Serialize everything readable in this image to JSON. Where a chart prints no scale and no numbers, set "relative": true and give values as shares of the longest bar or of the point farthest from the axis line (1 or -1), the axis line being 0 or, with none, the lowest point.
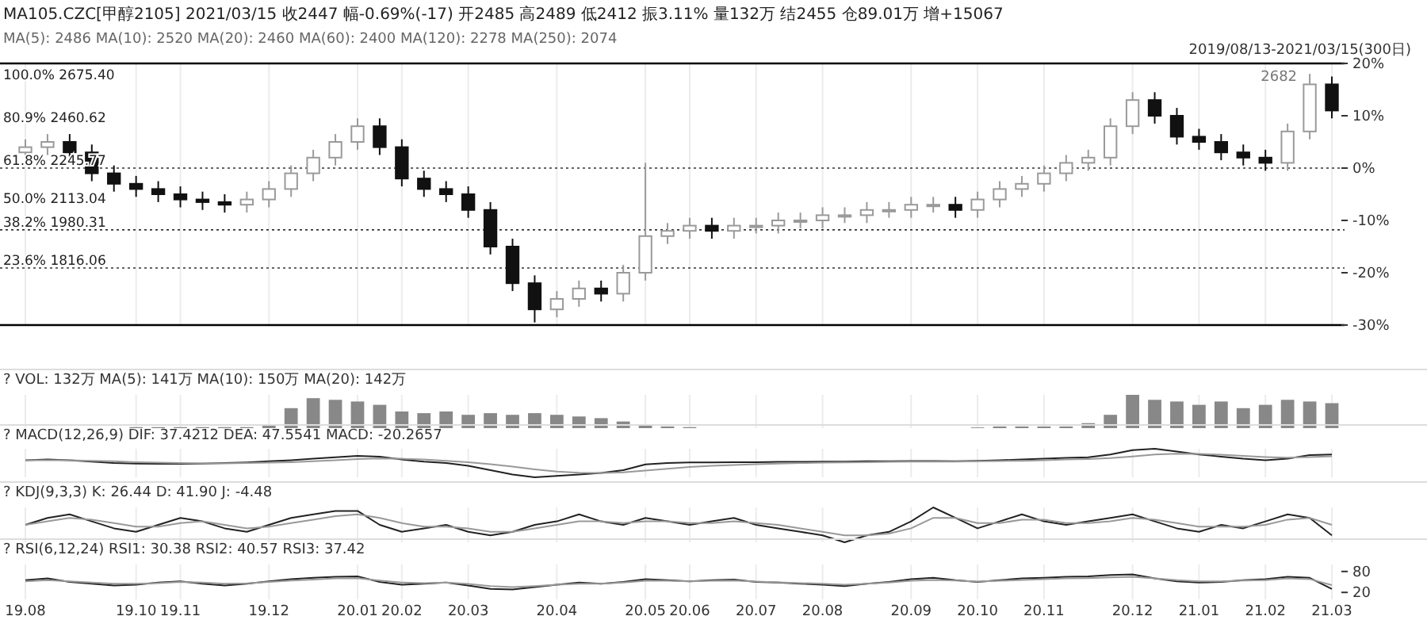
{
  "chart_data": [
    {
      "type": "candlestick",
      "title": "MA105.CZC[甲醇2105]  2021/03/15  收2447  幅-0.69%(-17)  开2485  高2489  低2412  振3.11%  量132万  结2455  仓89.01万  增+15067",
      "subtitle": "MA(5): 2486  MA(10): 2520  MA(20): 2460  MA(60): 2400  MA(120): 2278  MA(250): 2074",
      "annotations": [
        "2019/08/13-2021/03/15(300日)",
        "2682",
        "100.0%  2675.40",
        "80.9%  2460.62",
        "61.8%  2245.77",
        "50.0%  2113.04",
        "38.2%  1980.31",
        "23.6%  1816.06"
      ],
      "categories": [
        "19.08",
        null,
        null,
        null,
        null,
        "19.10",
        null,
        "19.11",
        null,
        null,
        null,
        "19.12",
        null,
        null,
        null,
        "20.01",
        null,
        "20.02",
        null,
        null,
        "20.03",
        null,
        null,
        null,
        "20.04",
        null,
        null,
        null,
        "20.05",
        null,
        "20.06",
        null,
        null,
        "20.07",
        null,
        null,
        "20.08",
        null,
        null,
        null,
        "20.09",
        null,
        null,
        "20.10",
        null,
        null,
        "20.11",
        null,
        null,
        null,
        "20.12",
        null,
        null,
        "21.01",
        null,
        null,
        "21.02",
        null,
        null,
        "21.03"
      ],
      "ohlc": [
        [
          3,
          5.5,
          1.5,
          4
        ],
        [
          4,
          6.5,
          2.5,
          5
        ],
        [
          5,
          6.5,
          1.5,
          3
        ],
        [
          3,
          4.5,
          -2.5,
          -1
        ],
        [
          -1,
          0.5,
          -4.5,
          -3
        ],
        [
          -3,
          -1.5,
          -5.5,
          -4
        ],
        [
          -4,
          -2.5,
          -6.5,
          -5
        ],
        [
          -5,
          -3.5,
          -7.5,
          -6
        ],
        [
          -6,
          -4.5,
          -8,
          -6.5
        ],
        [
          -6.5,
          -5,
          -8.5,
          -7
        ],
        [
          -7,
          -4.5,
          -8.5,
          -6
        ],
        [
          -6,
          -2.5,
          -7.5,
          -4
        ],
        [
          -4,
          0.5,
          -5.5,
          -1
        ],
        [
          -1,
          3.5,
          -2.5,
          2
        ],
        [
          2,
          6.5,
          0.5,
          5
        ],
        [
          5,
          9.5,
          3.5,
          8
        ],
        [
          8,
          9.5,
          2.5,
          4
        ],
        [
          4,
          5.5,
          -3.5,
          -2
        ],
        [
          -2,
          -0.5,
          -5.5,
          -4
        ],
        [
          -4,
          -2.5,
          -6.5,
          -5
        ],
        [
          -5,
          -3.5,
          -9.5,
          -8
        ],
        [
          -8,
          -6.5,
          -16.5,
          -15
        ],
        [
          -15,
          -13.5,
          -23.5,
          -22
        ],
        [
          -22,
          -20.5,
          -29.5,
          -27
        ],
        [
          -27,
          -23.5,
          -28.5,
          -25
        ],
        [
          -25,
          -21.5,
          -26.5,
          -23
        ],
        [
          -23,
          -21.5,
          -25.5,
          -24
        ],
        [
          -24,
          -18.5,
          -25.5,
          -20
        ],
        [
          -20,
          1,
          -21.5,
          -13
        ],
        [
          -13,
          -10.5,
          -14.5,
          -12
        ],
        [
          -12,
          -9.5,
          -13.5,
          -11
        ],
        [
          -11,
          -9.5,
          -13.5,
          -12
        ],
        [
          -12,
          -9.5,
          -13.5,
          -11
        ],
        [
          -11,
          -9.5,
          -12.5,
          -11
        ],
        [
          -11,
          -8.5,
          -12.5,
          -10
        ],
        [
          -10,
          -8.5,
          -11.5,
          -10
        ],
        [
          -10,
          -7.5,
          -11.5,
          -9
        ],
        [
          -9,
          -7.5,
          -10.5,
          -9
        ],
        [
          -9,
          -6.5,
          -10.5,
          -8
        ],
        [
          -8,
          -6.5,
          -9.5,
          -8
        ],
        [
          -8,
          -5.5,
          -9.5,
          -7
        ],
        [
          -7,
          -5.5,
          -8.5,
          -7
        ],
        [
          -7,
          -5.5,
          -9.5,
          -8
        ],
        [
          -8,
          -4.5,
          -9.5,
          -6
        ],
        [
          -6,
          -2.5,
          -7.5,
          -4
        ],
        [
          -4,
          -1.5,
          -5.5,
          -3
        ],
        [
          -3,
          0.5,
          -4.5,
          -1
        ],
        [
          -1,
          2.5,
          -2.5,
          1
        ],
        [
          1,
          3.5,
          -0.5,
          2
        ],
        [
          2,
          9.5,
          0.5,
          8
        ],
        [
          8,
          14.5,
          6.5,
          13
        ],
        [
          13,
          14.5,
          8.5,
          10
        ],
        [
          10,
          11.5,
          4.5,
          6
        ],
        [
          6,
          7.5,
          3.5,
          5
        ],
        [
          5,
          6.5,
          1.5,
          3
        ],
        [
          3,
          4.5,
          0.5,
          2
        ],
        [
          2,
          3.5,
          -0.5,
          1
        ],
        [
          1,
          8.5,
          -0.5,
          7
        ],
        [
          7,
          18,
          5.5,
          16
        ],
        [
          16,
          17.5,
          9.5,
          11
        ]
      ],
      "ylim": [
        -30,
        20
      ],
      "yticks": [
        {
          "value": 20,
          "label": "20%"
        },
        {
          "value": 10,
          "label": "10%"
        },
        {
          "value": 0,
          "label": "0%"
        },
        {
          "value": -10,
          "label": "-10%"
        },
        {
          "value": -20,
          "label": "-20%"
        },
        {
          "value": -30,
          "label": "-30%"
        }
      ],
      "ref_lines": [
        {
          "axis": "y",
          "value": 0,
          "line_style": "dotted"
        },
        {
          "axis": "y",
          "value": -11.8,
          "line_style": "dotted"
        },
        {
          "axis": "y",
          "value": -19.1,
          "line_style": "dotted"
        }
      ],
      "grid": "x",
      "tick_labels": "y"
    },
    {
      "type": "bar",
      "title": "? VOL: 132万 MA(5): 141万 MA(10): 150万 MA(20): 142万",
      "relative": true,
      "grid": "x",
      "tick_labels": false,
      "categories": [
        "19.08",
        null,
        null,
        null,
        null,
        "19.10",
        null,
        "19.11",
        null,
        null,
        null,
        "19.12",
        null,
        null,
        null,
        "20.01",
        null,
        "20.02",
        null,
        null,
        "20.03",
        null,
        null,
        null,
        "20.04",
        null,
        null,
        null,
        "20.05",
        null,
        "20.06",
        null,
        null,
        "20.07",
        null,
        null,
        "20.08",
        null,
        null,
        null,
        "20.09",
        null,
        null,
        "20.10",
        null,
        null,
        "20.11",
        null,
        null,
        null,
        "20.12",
        null,
        null,
        "21.01",
        null,
        null,
        "21.02",
        null,
        null,
        "21.03"
      ],
      "series": [
        {
          "color": "#888888",
          "values": [
            null,
            null,
            null,
            null,
            null,
            0.03,
            0.03,
            0.03,
            0.03,
            0.03,
            0.03,
            0.1,
            0.6,
            0.9,
            0.85,
            0.8,
            0.7,
            0.5,
            0.45,
            0.5,
            0.4,
            0.45,
            0.4,
            0.45,
            0.4,
            0.35,
            0.3,
            0.2,
            0.1,
            0.05,
            0.03,
            null,
            null,
            null,
            null,
            null,
            null,
            null,
            null,
            null,
            null,
            null,
            null,
            0.02,
            0.05,
            0.05,
            0.05,
            0.05,
            0.15,
            0.4,
            1,
            0.85,
            0.8,
            0.7,
            0.8,
            0.6,
            0.7,
            0.85,
            0.8,
            0.75
          ]
        }
      ]
    },
    {
      "type": "line",
      "title": "? MACD(12,26,9) DIF: 37.4212 DEA: 47.5541 MACD: -20.2657",
      "relative": true,
      "grid": "x",
      "tick_labels": false,
      "categories": [
        "19.08",
        null,
        null,
        null,
        null,
        "19.10",
        null,
        "19.11",
        null,
        null,
        null,
        "19.12",
        null,
        null,
        null,
        "20.01",
        null,
        "20.02",
        null,
        null,
        "20.03",
        null,
        null,
        null,
        "20.04",
        null,
        null,
        null,
        "20.05",
        null,
        "20.06",
        null,
        null,
        "20.07",
        null,
        null,
        "20.08",
        null,
        null,
        null,
        "20.09",
        null,
        null,
        "20.10",
        null,
        null,
        "20.11",
        null,
        null,
        null,
        "20.12",
        null,
        null,
        "21.01",
        null,
        null,
        "21.02",
        null,
        null,
        "21.03"
      ],
      "series": [
        {
          "color": "#222222",
          "values": [
            0.6,
            0.62,
            0.6,
            0.55,
            0.5,
            0.48,
            0.47,
            0.47,
            0.48,
            0.5,
            0.52,
            0.56,
            0.6,
            0.65,
            0.7,
            0.75,
            0.72,
            0.62,
            0.55,
            0.5,
            0.4,
            0.25,
            0.1,
            0,
            0.05,
            0.1,
            0.15,
            0.25,
            0.45,
            0.5,
            0.52,
            0.52,
            0.53,
            0.53,
            0.54,
            0.54,
            0.55,
            0.55,
            0.56,
            0.56,
            0.57,
            0.57,
            0.56,
            0.58,
            0.6,
            0.62,
            0.65,
            0.68,
            0.7,
            0.8,
            0.95,
            1,
            0.9,
            0.8,
            0.72,
            0.65,
            0.6,
            0.65,
            0.78,
            0.8
          ]
        },
        {
          "color": "#999999",
          "values": [
            0.6,
            0.6,
            0.6,
            0.58,
            0.56,
            0.53,
            0.51,
            0.5,
            0.49,
            0.49,
            0.5,
            0.51,
            0.53,
            0.56,
            0.6,
            0.64,
            0.66,
            0.65,
            0.62,
            0.58,
            0.53,
            0.46,
            0.37,
            0.28,
            0.2,
            0.16,
            0.15,
            0.17,
            0.24,
            0.3,
            0.36,
            0.4,
            0.43,
            0.46,
            0.48,
            0.5,
            0.51,
            0.52,
            0.53,
            0.54,
            0.55,
            0.55,
            0.55,
            0.56,
            0.57,
            0.58,
            0.6,
            0.62,
            0.64,
            0.67,
            0.73,
            0.8,
            0.83,
            0.82,
            0.79,
            0.75,
            0.71,
            0.69,
            0.71,
            0.74
          ]
        }
      ]
    },
    {
      "type": "line",
      "title": "? KDJ(9,3,3) K: 26.44 D: 41.90 J: -4.48",
      "relative": true,
      "grid": "x",
      "tick_labels": false,
      "categories": [
        "19.08",
        null,
        null,
        null,
        null,
        "19.10",
        null,
        "19.11",
        null,
        null,
        null,
        "19.12",
        null,
        null,
        null,
        "20.01",
        null,
        "20.02",
        null,
        null,
        "20.03",
        null,
        null,
        null,
        "20.04",
        null,
        null,
        null,
        "20.05",
        null,
        "20.06",
        null,
        null,
        "20.07",
        null,
        null,
        "20.08",
        null,
        null,
        null,
        "20.09",
        null,
        null,
        "20.10",
        null,
        null,
        "20.11",
        null,
        null,
        null,
        "20.12",
        null,
        null,
        "21.01",
        null,
        null,
        "21.02",
        null,
        null,
        "21.03"
      ],
      "series": [
        {
          "color": "#222222",
          "values": [
            0.5,
            0.7,
            0.8,
            0.6,
            0.4,
            0.3,
            0.5,
            0.7,
            0.6,
            0.4,
            0.3,
            0.5,
            0.7,
            0.8,
            0.9,
            0.9,
            0.5,
            0.3,
            0.4,
            0.5,
            0.3,
            0.2,
            0.3,
            0.5,
            0.6,
            0.8,
            0.6,
            0.5,
            0.7,
            0.6,
            0.5,
            0.6,
            0.7,
            0.5,
            0.4,
            0.3,
            0.2,
            0,
            0.2,
            0.3,
            0.6,
            1,
            0.7,
            0.4,
            0.6,
            0.8,
            0.6,
            0.5,
            0.6,
            0.7,
            0.8,
            0.6,
            0.4,
            0.3,
            0.5,
            0.4,
            0.6,
            0.8,
            0.7,
            0.2
          ]
        },
        {
          "color": "#999999",
          "values": [
            0.5,
            0.6,
            0.7,
            0.65,
            0.55,
            0.45,
            0.45,
            0.55,
            0.6,
            0.5,
            0.4,
            0.45,
            0.55,
            0.65,
            0.75,
            0.8,
            0.7,
            0.55,
            0.45,
            0.45,
            0.4,
            0.3,
            0.3,
            0.4,
            0.5,
            0.6,
            0.6,
            0.55,
            0.6,
            0.6,
            0.55,
            0.55,
            0.6,
            0.55,
            0.5,
            0.4,
            0.3,
            0.2,
            0.2,
            0.25,
            0.4,
            0.7,
            0.7,
            0.55,
            0.55,
            0.65,
            0.65,
            0.55,
            0.55,
            0.6,
            0.7,
            0.65,
            0.55,
            0.45,
            0.45,
            0.45,
            0.5,
            0.65,
            0.7,
            0.5
          ]
        }
      ]
    },
    {
      "type": "line",
      "title": "? RSI(6,12,24) RSI1: 30.38 RSI2: 40.57 RSI3: 37.42",
      "grid": "x",
      "ylim": [
        0,
        100
      ],
      "yticks": [
        80,
        20
      ],
      "categories": [
        "19.08",
        null,
        null,
        null,
        null,
        "19.10",
        null,
        "19.11",
        null,
        null,
        null,
        "19.12",
        null,
        null,
        null,
        "20.01",
        null,
        "20.02",
        null,
        null,
        "20.03",
        null,
        null,
        null,
        "20.04",
        null,
        null,
        null,
        "20.05",
        null,
        "20.06",
        null,
        null,
        "20.07",
        null,
        null,
        "20.08",
        null,
        null,
        null,
        "20.09",
        null,
        null,
        "20.10",
        null,
        null,
        "20.11",
        null,
        null,
        null,
        "20.12",
        null,
        null,
        "21.01",
        null,
        null,
        "21.02",
        null,
        null,
        "21.03"
      ],
      "series": [
        {
          "color": "#222222",
          "values": [
            55,
            60,
            50,
            45,
            40,
            42,
            48,
            52,
            45,
            40,
            45,
            52,
            58,
            62,
            65,
            66,
            50,
            42,
            45,
            48,
            40,
            30,
            28,
            35,
            42,
            48,
            45,
            50,
            58,
            55,
            52,
            55,
            57,
            50,
            48,
            45,
            42,
            38,
            45,
            50,
            58,
            62,
            55,
            50,
            55,
            60,
            62,
            65,
            66,
            70,
            72,
            60,
            52,
            48,
            50,
            55,
            58,
            65,
            62,
            30
          ]
        },
        {
          "color": "#999999",
          "values": [
            52,
            55,
            52,
            48,
            45,
            45,
            47,
            50,
            48,
            45,
            46,
            50,
            54,
            57,
            60,
            61,
            54,
            48,
            47,
            48,
            44,
            38,
            35,
            38,
            42,
            45,
            45,
            48,
            53,
            53,
            52,
            53,
            54,
            51,
            49,
            47,
            45,
            42,
            45,
            48,
            53,
            56,
            54,
            51,
            53,
            56,
            58,
            60,
            61,
            63,
            65,
            60,
            55,
            52,
            52,
            54,
            55,
            60,
            58,
            41
          ]
        }
      ]
    }
  ]
}
